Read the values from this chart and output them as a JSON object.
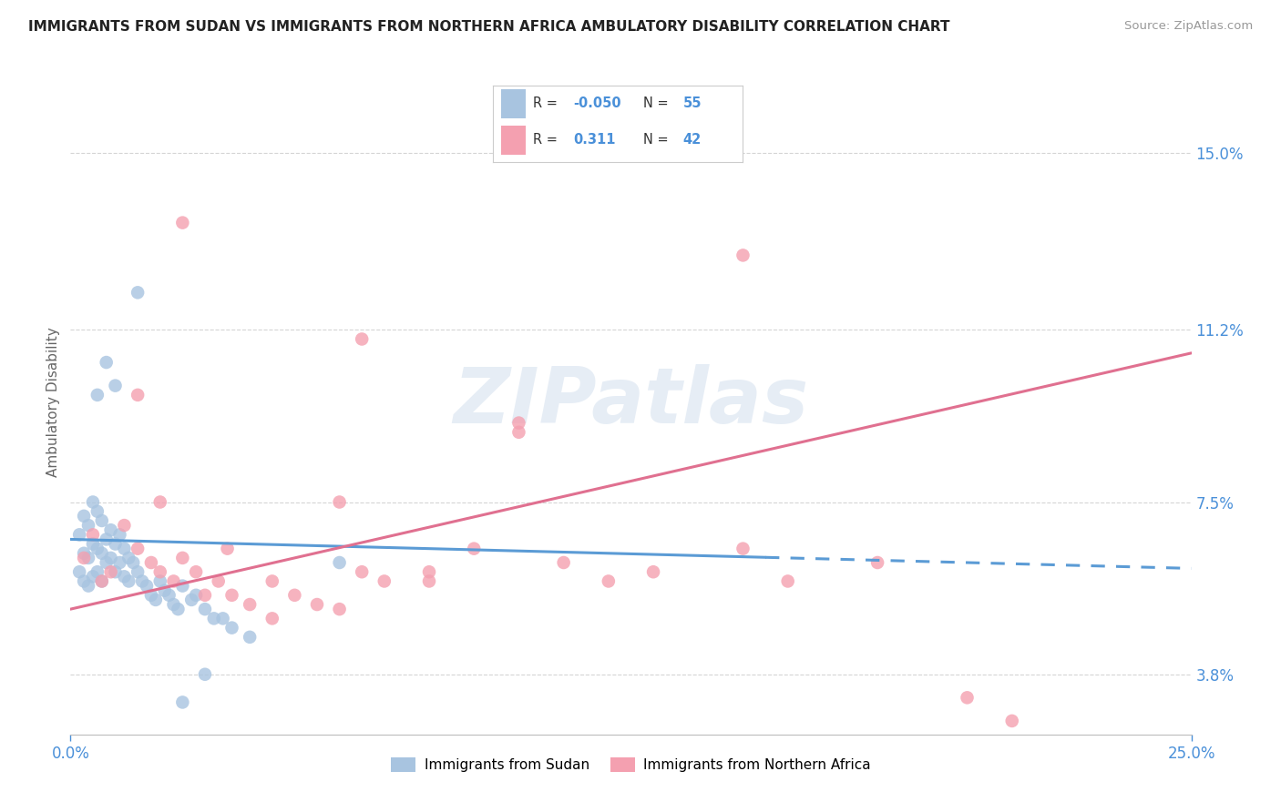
{
  "title": "IMMIGRANTS FROM SUDAN VS IMMIGRANTS FROM NORTHERN AFRICA AMBULATORY DISABILITY CORRELATION CHART",
  "source": "Source: ZipAtlas.com",
  "ylabel": "Ambulatory Disability",
  "ytick_labels": [
    "3.8%",
    "7.5%",
    "11.2%",
    "15.0%"
  ],
  "ytick_values": [
    0.038,
    0.075,
    0.112,
    0.15
  ],
  "xlim": [
    0.0,
    0.25
  ],
  "ylim": [
    0.025,
    0.168
  ],
  "color_sudan": "#a8c4e0",
  "color_northern": "#f4a0b0",
  "line_color_sudan": "#5b9bd5",
  "line_color_northern": "#e07090",
  "background_color": "#ffffff",
  "grid_color": "#d5d5d5",
  "watermark": "ZIPatlas",
  "legend_r1_label": "R = ",
  "legend_r1_val": "-0.050",
  "legend_n1_label": "N = ",
  "legend_n1_val": "55",
  "legend_r2_label": "R =  ",
  "legend_r2_val": "0.311",
  "legend_n2_label": "N = ",
  "legend_n2_val": "42",
  "bottom_legend1": "Immigrants from Sudan",
  "bottom_legend2": "Immigrants from Northern Africa"
}
